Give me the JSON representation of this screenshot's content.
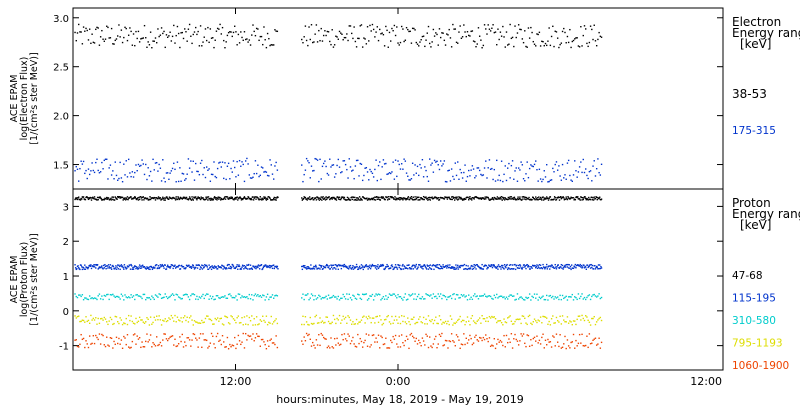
{
  "xlabel": "hours:minutes, May 18, 2019 - May 19, 2019",
  "x_ticks": [
    "12:00",
    "0:00",
    "12:00"
  ],
  "chart_data": [
    {
      "type": "scatter",
      "panel": "electron",
      "ylabel_lines": [
        "ACE EPAM",
        "log(Electron Flux)",
        "[1/(cm²s ster MeV)]"
      ],
      "ylim": [
        1.25,
        3.1
      ],
      "y_ticks": [
        "3.0",
        "2.5",
        "2.0",
        "1.5"
      ],
      "y_tick_values": [
        3.0,
        2.5,
        2.0,
        1.5
      ],
      "x_range_hours": [
        0,
        48
      ],
      "data_gaps_hours": [
        [
          15.1,
          16.8
        ]
      ],
      "data_end_hour": 39.0,
      "legend_title_lines": [
        "Electron",
        "Energy ranges",
        "[keV]"
      ],
      "series": [
        {
          "name": "38-53",
          "color": "#000000",
          "mean": 2.82,
          "scatter": 0.12
        },
        {
          "name": "175-315",
          "color": "#0033cc",
          "mean": 1.45,
          "scatter": 0.12
        }
      ]
    },
    {
      "type": "scatter",
      "panel": "proton",
      "ylabel_lines": [
        "ACE EPAM",
        "log(Proton Flux)",
        "[1/(cm²s ster MeV)]"
      ],
      "ylim": [
        -1.7,
        3.5
      ],
      "y_ticks": [
        "3",
        "2",
        "1",
        "0",
        "-1"
      ],
      "y_tick_values": [
        3,
        2,
        1,
        0,
        -1
      ],
      "x_range_hours": [
        0,
        48
      ],
      "data_gaps_hours": [
        [
          15.1,
          16.8
        ]
      ],
      "data_end_hour": 39.0,
      "legend_title_lines": [
        "Proton",
        "Energy ranges",
        "[keV]"
      ],
      "series": [
        {
          "name": "47-68",
          "color": "#000000",
          "mean": 3.25,
          "scatter": 0.05
        },
        {
          "name": "115-195",
          "color": "#0033cc",
          "mean": 1.28,
          "scatter": 0.07
        },
        {
          "name": "310-580",
          "color": "#00cccc",
          "mean": 0.42,
          "scatter": 0.09
        },
        {
          "name": "795-1193",
          "color": "#dddd00",
          "mean": -0.25,
          "scatter": 0.14
        },
        {
          "name": "1060-1900",
          "color": "#ee4400",
          "mean": -0.85,
          "scatter": 0.22
        }
      ]
    }
  ]
}
